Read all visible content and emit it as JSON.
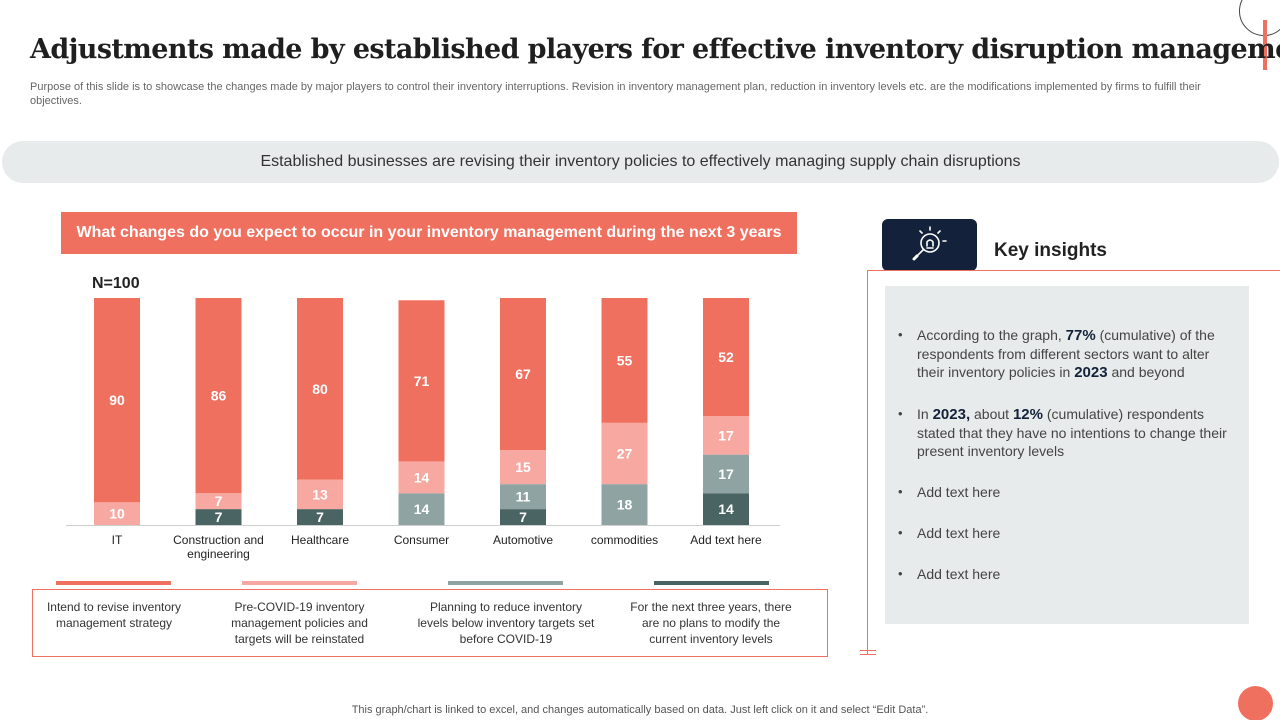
{
  "slide": {
    "title": "Adjustments made by established players for effective inventory disruption management",
    "subtitle": "Purpose of this slide is to showcase the changes made by major players to control their inventory interruptions. Revision in inventory management plan, reduction in inventory levels etc. are the modifications implemented by firms to fulfill their objectives.",
    "banner": "Established businesses are revising their inventory  policies to effectively managing supply chain disruptions",
    "footer": "This graph/chart is linked to excel,  and changes automatically based on data. Just left click on it and select “Edit Data”."
  },
  "colors": {
    "accent": "#f0705f",
    "series": [
      "#f0705f",
      "#f7a8a0",
      "#8fa3a3",
      "#4a6363"
    ],
    "navy": "#13213a",
    "panel": "#e8ebeb"
  },
  "chart_data": {
    "type": "bar",
    "stacked": true,
    "title": "What changes do you expect to occur in your inventory management during the next 3 years",
    "sample_label": "N=100",
    "categories": [
      "IT",
      "Construction and engineering",
      "Healthcare",
      "Consumer",
      "Automotive",
      "commodities",
      "Add text here"
    ],
    "category_lines": [
      [
        "IT"
      ],
      [
        "Construction and",
        "engineering"
      ],
      [
        "Healthcare"
      ],
      [
        "Consumer"
      ],
      [
        "Automotive"
      ],
      [
        "commodities"
      ],
      [
        "Add text here"
      ]
    ],
    "series": [
      {
        "name": "For the next three years, there are no plans to modify the current inventory levels",
        "values": [
          0,
          7,
          7,
          0,
          7,
          0,
          14
        ]
      },
      {
        "name": "Planning to reduce inventory levels below inventory targets set before COVID-19",
        "values": [
          0,
          0,
          0,
          14,
          11,
          18,
          17
        ]
      },
      {
        "name": "Pre-COVID-19 inventory management policies and targets will be reinstated",
        "values": [
          10,
          7,
          13,
          14,
          15,
          27,
          17
        ]
      },
      {
        "name": "Intend to revise inventory management strategy",
        "values": [
          90,
          86,
          80,
          71,
          67,
          55,
          52
        ]
      }
    ],
    "series_colors": [
      "#4a6363",
      "#8fa3a3",
      "#f7a8a0",
      "#f0705f"
    ],
    "ylim": [
      0,
      100
    ],
    "xlabel": "",
    "ylabel": ""
  },
  "legend": [
    {
      "label": "Intend to revise inventory management  strategy",
      "color": "#f0705f"
    },
    {
      "label": "Pre-COVID-19  inventory management policies and targets will be reinstated",
      "color": "#f7a8a0"
    },
    {
      "label": "Planning to reduce inventory levels below inventory targets set before  COVID-19",
      "color": "#8fa3a3"
    },
    {
      "label": "For the next three years, there are no plans to modify the current inventory levels",
      "color": "#4a6363"
    }
  ],
  "insights": {
    "title": "Key insights",
    "icon": "lightbulb-magnifier-icon",
    "b1_pre": "According to the graph, ",
    "b1_hl1": "77%",
    "b1_mid": " (cumulative) of the respondents from different sectors want to alter their inventory policies in ",
    "b1_hl2": "2023",
    "b1_post": " and beyond",
    "b2_pre": "In ",
    "b2_hl1": "2023,",
    "b2_mid": " about ",
    "b2_hl2": "12%",
    "b2_post": " (cumulative) respondents stated that they have no intentions to change their present inventory levels",
    "b3": "Add text here",
    "b4": "Add text here",
    "b5": "Add text here"
  }
}
